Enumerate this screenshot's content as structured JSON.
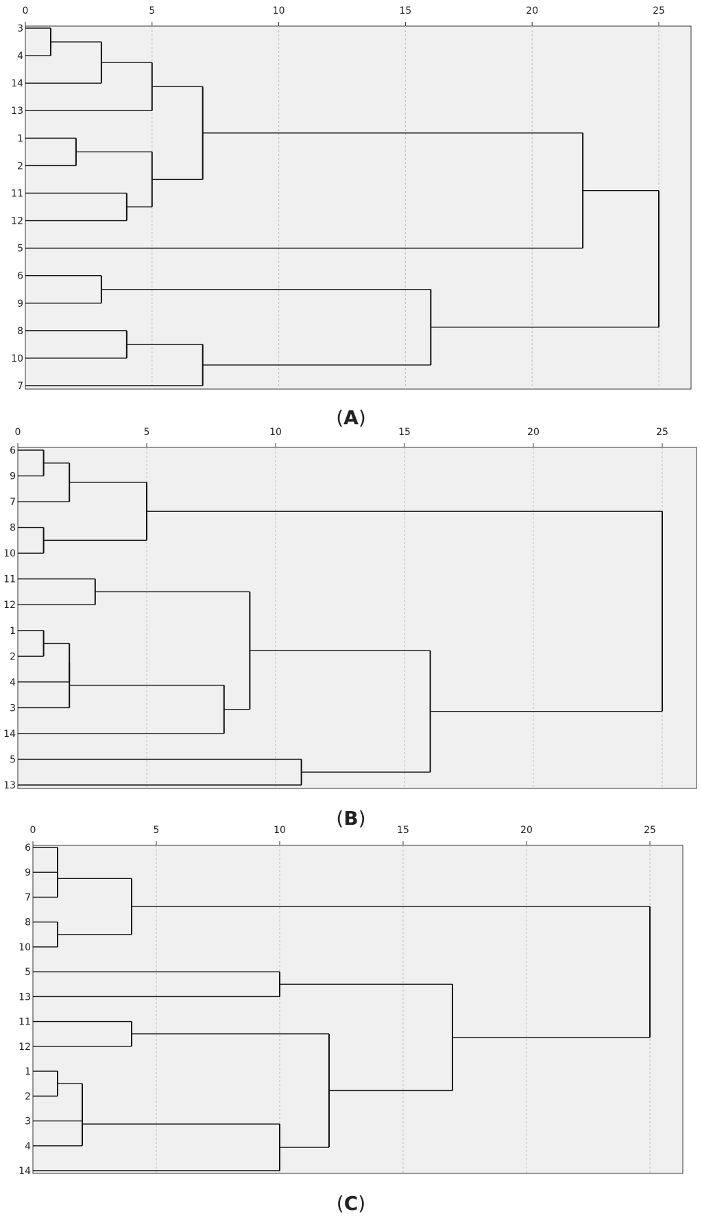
{
  "chart_data": [
    {
      "type": "dendrogram",
      "caption_letter": "A",
      "x_ticks": [
        0,
        5,
        10,
        15,
        20,
        25
      ],
      "leaves": [
        "3",
        "4",
        "14",
        "13",
        "1",
        "2",
        "11",
        "12",
        "5",
        "6",
        "9",
        "8",
        "10",
        "7"
      ],
      "merges": [
        {
          "a": "3",
          "b": "4",
          "height": 1
        },
        {
          "a": "1",
          "b": "2",
          "height": 2
        },
        {
          "a": "11",
          "b": "12",
          "height": 4
        },
        {
          "a": "6",
          "b": "9",
          "height": 3
        },
        {
          "a": "8",
          "b": "10",
          "height": 4
        },
        {
          "a": "3",
          "b": "14",
          "height": 3
        },
        {
          "a": "3",
          "b": "13",
          "height": 5
        },
        {
          "a": "1",
          "b": "11",
          "height": 5
        },
        {
          "a": "3",
          "b": "1",
          "height": 7
        },
        {
          "a": "8",
          "b": "7",
          "height": 7
        },
        {
          "a": "6",
          "b": "8",
          "height": 16
        },
        {
          "a": "3",
          "b": "5",
          "height": 22
        },
        {
          "a": "3",
          "b": "6",
          "height": 25
        }
      ]
    },
    {
      "type": "dendrogram",
      "caption_letter": "B",
      "x_ticks": [
        0,
        5,
        10,
        15,
        20,
        25
      ],
      "leaves": [
        "6",
        "9",
        "7",
        "8",
        "10",
        "11",
        "12",
        "1",
        "2",
        "4",
        "3",
        "14",
        "5",
        "13"
      ],
      "merges": [
        {
          "a": "6",
          "b": "9",
          "height": 1
        },
        {
          "a": "8",
          "b": "10",
          "height": 1
        },
        {
          "a": "1",
          "b": "2",
          "height": 1
        },
        {
          "a": "6",
          "b": "7",
          "height": 2
        },
        {
          "a": "1",
          "b": "4",
          "height": 2
        },
        {
          "a": "6",
          "b": "8",
          "height": 5
        },
        {
          "a": "11",
          "b": "12",
          "height": 3
        },
        {
          "a": "1",
          "b": "3",
          "height": 2
        },
        {
          "a": "1",
          "b": "14",
          "height": 8
        },
        {
          "a": "11",
          "b": "1",
          "height": 9
        },
        {
          "a": "5",
          "b": "13",
          "height": 11
        },
        {
          "a": "11",
          "b": "5",
          "height": 16
        },
        {
          "a": "6",
          "b": "11",
          "height": 25
        }
      ]
    },
    {
      "type": "dendrogram",
      "caption_letter": "C",
      "x_ticks": [
        0,
        5,
        10,
        15,
        20,
        25
      ],
      "leaves": [
        "6",
        "9",
        "7",
        "8",
        "10",
        "5",
        "13",
        "11",
        "12",
        "1",
        "2",
        "3",
        "4",
        "14"
      ],
      "merges": [
        {
          "a": "6",
          "b": "9",
          "height": 1
        },
        {
          "a": "8",
          "b": "10",
          "height": 1
        },
        {
          "a": "1",
          "b": "2",
          "height": 1
        },
        {
          "a": "6",
          "b": "7",
          "height": 1
        },
        {
          "a": "6",
          "b": "8",
          "height": 4
        },
        {
          "a": "1",
          "b": "3",
          "height": 2
        },
        {
          "a": "1",
          "b": "4",
          "height": 2
        },
        {
          "a": "11",
          "b": "12",
          "height": 4
        },
        {
          "a": "5",
          "b": "13",
          "height": 10
        },
        {
          "a": "1",
          "b": "14",
          "height": 10
        },
        {
          "a": "11",
          "b": "1",
          "height": 12
        },
        {
          "a": "5",
          "b": "11",
          "height": 17
        },
        {
          "a": "6",
          "b": "5",
          "height": 25
        }
      ]
    }
  ]
}
